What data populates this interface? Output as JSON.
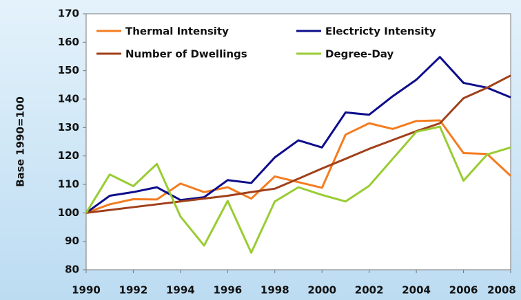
{
  "chart_data": {
    "type": "line",
    "y_label": "Base 1990=100",
    "x": [
      1990,
      1991,
      1992,
      1993,
      1994,
      1995,
      1996,
      1997,
      1998,
      1999,
      2000,
      2001,
      2002,
      2003,
      2004,
      2005,
      2006,
      2007,
      2008
    ],
    "series": [
      {
        "name": "Thermal Intensity",
        "color": "#f47c20",
        "values": [
          100,
          103,
          104.8,
          104.7,
          110.3,
          107.3,
          109,
          105,
          112.8,
          110.8,
          108.8,
          127.5,
          131.5,
          129.5,
          132.3,
          132.5,
          121,
          120.7,
          113
        ]
      },
      {
        "name": "Electricty Intensity",
        "color": "#0d0d8c",
        "values": [
          100,
          106,
          107.3,
          109,
          104.5,
          105.5,
          111.5,
          110.5,
          119.5,
          125.5,
          123,
          135.3,
          134.5,
          141,
          146.8,
          154.8,
          145.7,
          144,
          140.6
        ]
      },
      {
        "name": "Number of Dwellings",
        "color": "#a0401a",
        "values": [
          100,
          101,
          102,
          103,
          104,
          105,
          106,
          107.3,
          108.5,
          112,
          115.6,
          119,
          122.5,
          125.6,
          128.7,
          131.5,
          140.3,
          144,
          148.3
        ]
      },
      {
        "name": "Degree-Day",
        "color": "#99cc33",
        "values": [
          100,
          113.5,
          109.4,
          117.2,
          98.7,
          88.5,
          104.2,
          86,
          104,
          109,
          106.3,
          104,
          109.5,
          119,
          128.5,
          130.3,
          111.3,
          120.5,
          123
        ]
      }
    ],
    "xlim": [
      1990,
      2008
    ],
    "xticks": [
      1990,
      1992,
      1994,
      1996,
      1998,
      2000,
      2002,
      2004,
      2006,
      2008
    ],
    "ylim": [
      80,
      170
    ],
    "yticks": [
      80,
      90,
      100,
      110,
      120,
      130,
      140,
      150,
      160,
      170
    ],
    "grid": false
  }
}
